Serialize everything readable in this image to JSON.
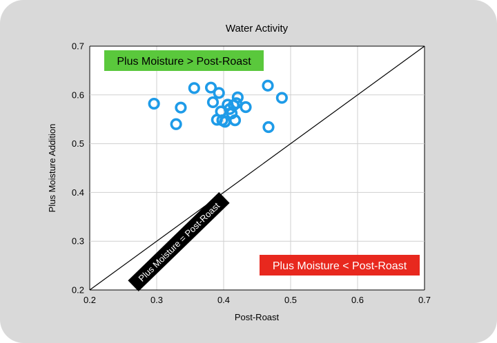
{
  "chart_data": {
    "type": "scatter",
    "title": "Water Activity",
    "xlabel": "Post-Roast",
    "ylabel": "Plus Moisture Addition",
    "xlim": [
      0.2,
      0.7
    ],
    "ylim": [
      0.2,
      0.7
    ],
    "xticks": [
      "0.2",
      "0.3",
      "0.4",
      "0.5",
      "0.6",
      "0.7"
    ],
    "yticks": [
      "0.2",
      "0.3",
      "0.4",
      "0.5",
      "0.6",
      "0.7"
    ],
    "grid": true,
    "series": [
      {
        "color": "#1e9be8",
        "marker": "open-circle",
        "points": [
          [
            0.296,
            0.582
          ],
          [
            0.329,
            0.54
          ],
          [
            0.336,
            0.574
          ],
          [
            0.356,
            0.614
          ],
          [
            0.381,
            0.615
          ],
          [
            0.384,
            0.585
          ],
          [
            0.39,
            0.549
          ],
          [
            0.393,
            0.604
          ],
          [
            0.396,
            0.566
          ],
          [
            0.398,
            0.548
          ],
          [
            0.402,
            0.545
          ],
          [
            0.406,
            0.58
          ],
          [
            0.409,
            0.571
          ],
          [
            0.412,
            0.562
          ],
          [
            0.415,
            0.579
          ],
          [
            0.417,
            0.548
          ],
          [
            0.419,
            0.583
          ],
          [
            0.421,
            0.595
          ],
          [
            0.433,
            0.575
          ],
          [
            0.466,
            0.619
          ],
          [
            0.467,
            0.534
          ],
          [
            0.487,
            0.594
          ]
        ]
      }
    ],
    "reference_line": {
      "from": [
        0.2,
        0.2
      ],
      "to": [
        0.7,
        0.7
      ],
      "color": "#000000"
    },
    "annotations": {
      "above": {
        "text": "Plus Moisture > Post-Roast",
        "background": "#5ac83c",
        "color": "#000000"
      },
      "below": {
        "text": "Plus Moisture < Post-Roast",
        "background": "#e8281e",
        "color": "#ffffff"
      },
      "diagonal": {
        "text": "Plus Moisture = Post-Roast",
        "background": "#000000",
        "color": "#ffffff"
      }
    }
  }
}
